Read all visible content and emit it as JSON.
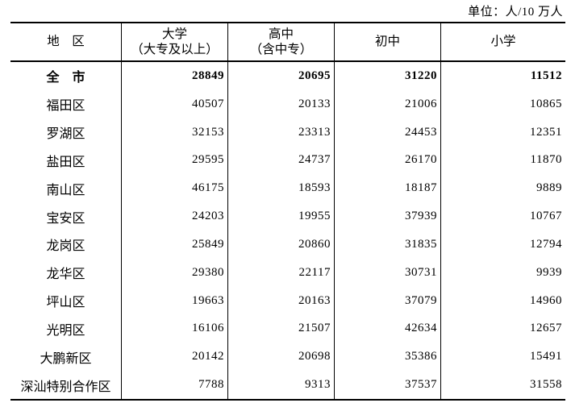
{
  "unit_label": "单位：人/10 万人",
  "table": {
    "header": {
      "region": "地　区",
      "university": "大学",
      "university_sub": "（大专及以上）",
      "high_school": "高中",
      "high_school_sub": "（含中专）",
      "junior_high": "初中",
      "primary": "小学"
    },
    "rows": [
      {
        "region": "全　市",
        "bold": true,
        "values": [
          "28849",
          "20695",
          "31220",
          "11512"
        ]
      },
      {
        "region": "福田区",
        "bold": false,
        "values": [
          "40507",
          "20133",
          "21006",
          "10865"
        ]
      },
      {
        "region": "罗湖区",
        "bold": false,
        "values": [
          "32153",
          "23313",
          "24453",
          "12351"
        ]
      },
      {
        "region": "盐田区",
        "bold": false,
        "values": [
          "29595",
          "24737",
          "26170",
          "11870"
        ]
      },
      {
        "region": "南山区",
        "bold": false,
        "values": [
          "46175",
          "18593",
          "18187",
          "9889"
        ]
      },
      {
        "region": "宝安区",
        "bold": false,
        "values": [
          "24203",
          "19955",
          "37939",
          "10767"
        ]
      },
      {
        "region": "龙岗区",
        "bold": false,
        "values": [
          "25849",
          "20860",
          "31835",
          "12794"
        ]
      },
      {
        "region": "龙华区",
        "bold": false,
        "values": [
          "29380",
          "22117",
          "30731",
          "9939"
        ]
      },
      {
        "region": "坪山区",
        "bold": false,
        "values": [
          "19663",
          "20163",
          "37079",
          "14960"
        ]
      },
      {
        "region": "光明区",
        "bold": false,
        "values": [
          "16106",
          "21507",
          "42634",
          "12657"
        ]
      },
      {
        "region": "大鹏新区",
        "bold": false,
        "values": [
          "20142",
          "20698",
          "35386",
          "15491"
        ]
      },
      {
        "region": "深汕特别合作区",
        "bold": false,
        "values": [
          "7788",
          "9313",
          "37537",
          "31558"
        ]
      }
    ]
  },
  "colors": {
    "text": "#000000",
    "line": "#000000",
    "background": "#ffffff"
  }
}
